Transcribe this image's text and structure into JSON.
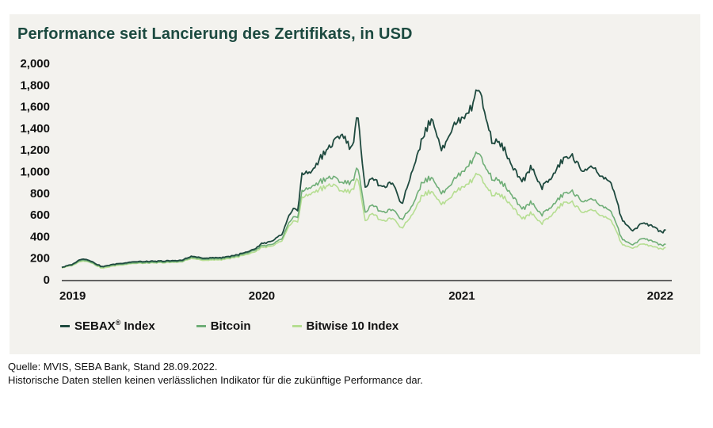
{
  "title": "Performance seit Lancierung des Zertifikats, in USD",
  "footnote": {
    "source": "Quelle: MVIS, SEBA Bank, Stand 28.09.2022.",
    "disclaimer": "Historische Daten stellen keinen verlässlichen Indikator für die zukünftige Performance dar."
  },
  "colors": {
    "panel": "#f3f2ee",
    "title": "#1c4a40",
    "axis": "#333333"
  },
  "chart_data": {
    "type": "line",
    "title": "Performance seit Lancierung des Zertifikats, in USD",
    "xlabel": "",
    "ylabel": "",
    "xlim": [
      2019.0,
      2022.05
    ],
    "ylim": [
      0,
      2000
    ],
    "x_ticks": [
      {
        "value": 2019.0,
        "label": "2019"
      },
      {
        "value": 2020.0,
        "label": "2020"
      },
      {
        "value": 2021.0,
        "label": "2021"
      },
      {
        "value": 2022.0,
        "label": "2022"
      }
    ],
    "y_ticks": [
      {
        "value": 0,
        "label": "0"
      },
      {
        "value": 200,
        "label": "200"
      },
      {
        "value": 400,
        "label": "400"
      },
      {
        "value": 600,
        "label": "600"
      },
      {
        "value": 800,
        "label": "800"
      },
      {
        "value": 1000,
        "label": "1,000"
      },
      {
        "value": 1200,
        "label": "1,200"
      },
      {
        "value": 1400,
        "label": "1,400"
      },
      {
        "value": 1600,
        "label": "1,600"
      },
      {
        "value": 1800,
        "label": "1,800"
      },
      {
        "value": 2000,
        "label": "2,000"
      }
    ],
    "grid": false,
    "legend_position": "bottom-left",
    "series": [
      {
        "name": "SEBAX® Index",
        "legend_label": "SEBAX",
        "legend_sup": "®",
        "legend_suffix": " Index",
        "color": "#1f4a3f",
        "x": [
          2019.0,
          2019.05,
          2019.1,
          2019.14,
          2019.2,
          2019.25,
          2019.35,
          2019.45,
          2019.55,
          2019.6,
          2019.65,
          2019.7,
          2019.8,
          2019.9,
          2019.95,
          2020.0,
          2020.05,
          2020.1,
          2020.13,
          2020.16,
          2020.18,
          2020.2,
          2020.25,
          2020.3,
          2020.35,
          2020.4,
          2020.45,
          2020.48,
          2020.5,
          2020.52,
          2020.55,
          2020.6,
          2020.65,
          2020.7,
          2020.75,
          2020.8,
          2020.85,
          2020.9,
          2020.95,
          2021.0,
          2021.05,
          2021.08,
          2021.1,
          2021.15,
          2021.2,
          2021.25,
          2021.3,
          2021.35,
          2021.4,
          2021.45,
          2021.5,
          2021.55,
          2021.6,
          2021.65,
          2021.7,
          2021.75,
          2021.8,
          2021.85,
          2021.9,
          2021.95,
          2022.0,
          2022.02
        ],
        "y": [
          115,
          140,
          195,
          180,
          120,
          140,
          165,
          170,
          175,
          180,
          220,
          200,
          205,
          240,
          270,
          330,
          350,
          420,
          560,
          680,
          620,
          980,
          1000,
          1150,
          1250,
          1350,
          1200,
          1550,
          1100,
          850,
          950,
          850,
          900,
          700,
          1000,
          1300,
          1500,
          1200,
          1400,
          1500,
          1600,
          1800,
          1650,
          1300,
          1250,
          1050,
          900,
          1050,
          850,
          950,
          1100,
          1150,
          1000,
          1050,
          950,
          880,
          560,
          450,
          520,
          500,
          440,
          450
        ]
      },
      {
        "name": "Bitcoin",
        "legend_label": "Bitcoin",
        "legend_sup": "",
        "legend_suffix": "",
        "color": "#6fae77",
        "x": [
          2019.0,
          2019.05,
          2019.1,
          2019.14,
          2019.2,
          2019.25,
          2019.35,
          2019.45,
          2019.55,
          2019.6,
          2019.65,
          2019.7,
          2019.8,
          2019.9,
          2019.95,
          2020.0,
          2020.05,
          2020.1,
          2020.13,
          2020.16,
          2020.18,
          2020.2,
          2020.25,
          2020.3,
          2020.35,
          2020.4,
          2020.45,
          2020.48,
          2020.5,
          2020.52,
          2020.55,
          2020.6,
          2020.65,
          2020.7,
          2020.75,
          2020.8,
          2020.85,
          2020.9,
          2020.95,
          2021.0,
          2021.05,
          2021.08,
          2021.1,
          2021.15,
          2021.2,
          2021.25,
          2021.3,
          2021.35,
          2021.4,
          2021.45,
          2021.5,
          2021.55,
          2021.6,
          2021.65,
          2021.7,
          2021.75,
          2021.8,
          2021.85,
          2021.9,
          2021.95,
          2022.0,
          2022.02
        ],
        "y": [
          115,
          135,
          185,
          170,
          115,
          135,
          155,
          160,
          165,
          170,
          210,
          190,
          195,
          230,
          260,
          310,
          320,
          380,
          500,
          600,
          560,
          820,
          860,
          920,
          950,
          900,
          900,
          1050,
          800,
          620,
          700,
          620,
          650,
          560,
          680,
          900,
          950,
          800,
          900,
          1000,
          1100,
          1200,
          1100,
          950,
          900,
          780,
          650,
          720,
          600,
          680,
          780,
          820,
          720,
          750,
          680,
          620,
          380,
          320,
          380,
          360,
          320,
          320
        ]
      },
      {
        "name": "Bitwise 10 Index",
        "legend_label": "Bitwise 10 Index",
        "legend_sup": "",
        "legend_suffix": "",
        "color": "#b6de92",
        "x": [
          2019.0,
          2019.05,
          2019.1,
          2019.14,
          2019.2,
          2019.25,
          2019.35,
          2019.45,
          2019.55,
          2019.6,
          2019.65,
          2019.7,
          2019.8,
          2019.9,
          2019.95,
          2020.0,
          2020.05,
          2020.1,
          2020.13,
          2020.16,
          2020.18,
          2020.2,
          2020.25,
          2020.3,
          2020.35,
          2020.4,
          2020.45,
          2020.48,
          2020.5,
          2020.52,
          2020.55,
          2020.6,
          2020.65,
          2020.7,
          2020.75,
          2020.8,
          2020.85,
          2020.9,
          2020.95,
          2021.0,
          2021.05,
          2021.08,
          2021.1,
          2021.15,
          2021.2,
          2021.25,
          2021.3,
          2021.35,
          2021.4,
          2021.45,
          2021.5,
          2021.55,
          2021.6,
          2021.65,
          2021.7,
          2021.75,
          2021.8,
          2021.85,
          2021.9,
          2021.95,
          2022.0,
          2022.02
        ],
        "y": [
          110,
          130,
          175,
          165,
          105,
          125,
          150,
          155,
          160,
          165,
          200,
          180,
          185,
          220,
          245,
          295,
          305,
          360,
          470,
          560,
          520,
          760,
          800,
          850,
          880,
          820,
          820,
          950,
          720,
          540,
          620,
          540,
          570,
          480,
          600,
          780,
          820,
          700,
          780,
          860,
          920,
          1000,
          920,
          800,
          780,
          680,
          560,
          620,
          520,
          600,
          700,
          720,
          620,
          650,
          590,
          540,
          330,
          290,
          330,
          310,
          285,
          290
        ]
      }
    ]
  }
}
